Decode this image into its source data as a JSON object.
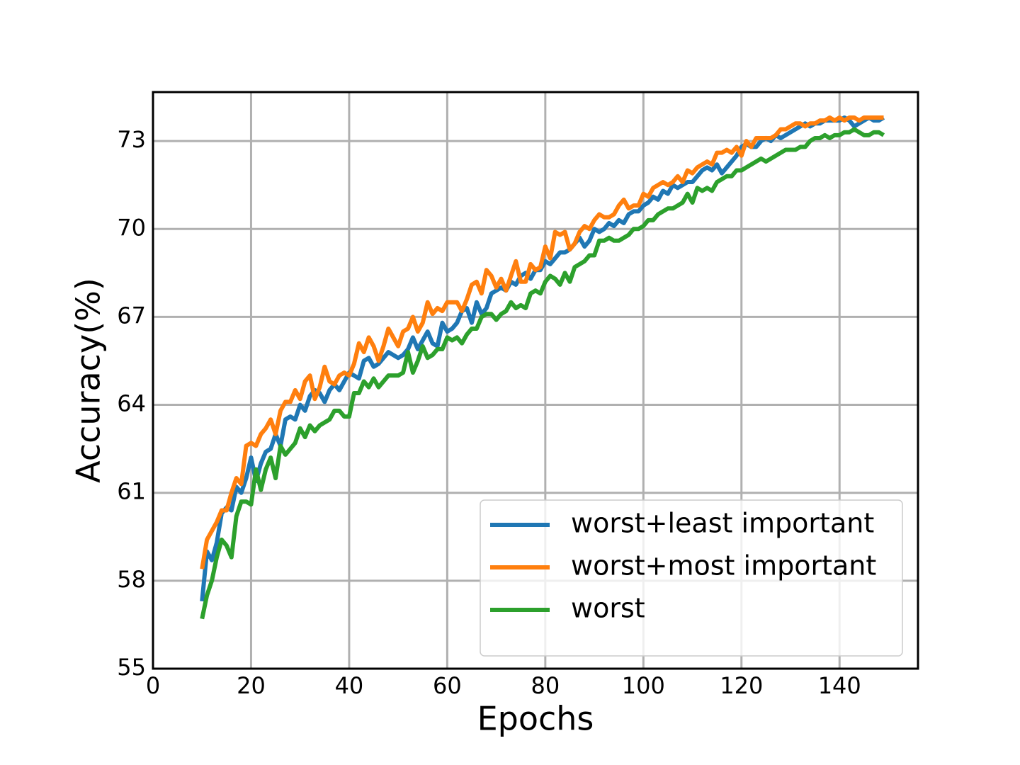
{
  "chart_data": {
    "type": "line",
    "xlabel": "Epochs",
    "ylabel": "Accuracy(%)",
    "xlim": [
      0,
      156
    ],
    "ylim": [
      55,
      74.67
    ],
    "xticks": [
      0,
      20,
      40,
      60,
      80,
      100,
      120,
      140
    ],
    "yticks": [
      55,
      58,
      61,
      64,
      67,
      70,
      73
    ],
    "grid": true,
    "legend": "lower right",
    "x": [
      10,
      11,
      12,
      13,
      14,
      15,
      16,
      17,
      18,
      19,
      20,
      21,
      22,
      23,
      24,
      25,
      26,
      27,
      28,
      29,
      30,
      31,
      32,
      33,
      34,
      35,
      36,
      37,
      38,
      39,
      40,
      41,
      42,
      43,
      44,
      45,
      46,
      47,
      48,
      49,
      50,
      51,
      52,
      53,
      54,
      55,
      56,
      57,
      58,
      59,
      60,
      61,
      62,
      63,
      64,
      65,
      66,
      67,
      68,
      69,
      70,
      71,
      72,
      73,
      74,
      75,
      76,
      77,
      78,
      79,
      80,
      81,
      82,
      83,
      84,
      85,
      86,
      87,
      88,
      89,
      90,
      91,
      92,
      93,
      94,
      95,
      96,
      97,
      98,
      99,
      100,
      101,
      102,
      103,
      104,
      105,
      106,
      107,
      108,
      109,
      110,
      111,
      112,
      113,
      114,
      115,
      116,
      117,
      118,
      119,
      120,
      121,
      122,
      123,
      124,
      125,
      126,
      127,
      128,
      129,
      130,
      131,
      132,
      133,
      134,
      135,
      136,
      137,
      138,
      139,
      140,
      141,
      142,
      143,
      144,
      145,
      146,
      147,
      148,
      149
    ],
    "series": [
      {
        "name": "worst+least important",
        "color": "#1f77b4",
        "values": [
          57.3,
          59.0,
          58.7,
          59.3,
          60.3,
          60.5,
          60.4,
          61.2,
          61.0,
          61.5,
          62.2,
          61.4,
          62.0,
          62.4,
          62.5,
          63.0,
          62.6,
          63.5,
          63.6,
          63.5,
          64.0,
          63.8,
          64.3,
          64.5,
          64.4,
          64.1,
          64.5,
          64.7,
          64.5,
          64.8,
          65.1,
          65.0,
          64.9,
          65.5,
          65.6,
          65.3,
          65.4,
          65.6,
          65.8,
          65.7,
          65.6,
          65.7,
          65.9,
          66.3,
          65.9,
          66.2,
          66.5,
          66.1,
          66.0,
          66.8,
          66.5,
          66.6,
          66.8,
          67.2,
          67.3,
          66.8,
          67.5,
          67.1,
          67.3,
          67.8,
          67.9,
          68.0,
          67.9,
          68.2,
          68.1,
          68.4,
          68.5,
          68.3,
          68.6,
          68.6,
          68.9,
          68.8,
          69.0,
          69.2,
          69.2,
          69.3,
          69.5,
          69.7,
          69.4,
          69.6,
          70.0,
          69.9,
          70.0,
          70.2,
          70.1,
          70.3,
          70.2,
          70.5,
          70.6,
          70.6,
          70.8,
          70.9,
          71.1,
          71.0,
          71.3,
          71.2,
          71.5,
          71.4,
          71.5,
          71.6,
          71.6,
          71.8,
          72.0,
          72.1,
          72.0,
          72.2,
          71.9,
          72.1,
          72.3,
          72.5,
          72.8,
          72.9,
          72.8,
          72.8,
          73.0,
          73.1,
          73.0,
          73.2,
          73.1,
          73.2,
          73.3,
          73.4,
          73.5,
          73.6,
          73.5,
          73.6,
          73.6,
          73.7,
          73.7,
          73.7,
          73.7,
          73.8,
          73.7,
          73.5,
          73.6,
          73.7,
          73.8,
          73.7,
          73.7,
          73.8
        ]
      },
      {
        "name": "worst+most important",
        "color": "#ff7f0e",
        "values": [
          58.4,
          59.4,
          59.7,
          60.0,
          60.4,
          60.4,
          61.0,
          61.5,
          61.3,
          62.6,
          62.7,
          62.6,
          63.0,
          63.2,
          63.5,
          63.0,
          63.8,
          64.1,
          64.1,
          64.5,
          64.2,
          64.8,
          65.0,
          64.2,
          64.6,
          65.3,
          64.8,
          64.7,
          65.0,
          65.1,
          65.0,
          65.4,
          66.1,
          65.8,
          66.3,
          66.0,
          65.5,
          66.0,
          66.6,
          66.3,
          66.0,
          66.5,
          66.6,
          67.0,
          66.5,
          66.8,
          67.5,
          67.1,
          67.3,
          67.2,
          67.5,
          67.5,
          67.5,
          67.2,
          67.6,
          68.1,
          68.2,
          67.8,
          68.6,
          68.4,
          68.0,
          68.3,
          67.9,
          68.4,
          68.9,
          68.2,
          68.2,
          68.8,
          68.6,
          68.7,
          69.4,
          69.0,
          69.9,
          69.8,
          69.9,
          69.3,
          69.5,
          69.9,
          70.1,
          70.0,
          70.3,
          70.5,
          70.4,
          70.4,
          70.5,
          70.8,
          71.0,
          70.7,
          70.8,
          70.8,
          71.2,
          71.1,
          71.4,
          71.5,
          71.6,
          71.5,
          71.6,
          71.8,
          71.6,
          72.0,
          71.9,
          72.1,
          72.2,
          72.3,
          72.2,
          72.6,
          72.6,
          72.7,
          72.6,
          72.8,
          72.5,
          73.0,
          72.8,
          73.1,
          73.1,
          73.1,
          73.1,
          73.2,
          73.4,
          73.4,
          73.5,
          73.6,
          73.6,
          73.5,
          73.6,
          73.6,
          73.7,
          73.7,
          73.8,
          73.7,
          73.8,
          73.7,
          73.8,
          73.8,
          73.7,
          73.8,
          73.8,
          73.8,
          73.8,
          73.8
        ]
      },
      {
        "name": "worst",
        "color": "#2ca02c",
        "values": [
          56.7,
          57.5,
          58.0,
          58.8,
          59.4,
          59.2,
          58.8,
          60.2,
          60.7,
          60.7,
          60.6,
          61.8,
          61.1,
          61.8,
          62.2,
          61.5,
          62.6,
          62.3,
          62.5,
          62.7,
          63.2,
          62.9,
          63.3,
          63.1,
          63.3,
          63.4,
          63.5,
          63.8,
          63.8,
          63.6,
          63.6,
          64.4,
          64.4,
          64.8,
          64.6,
          64.9,
          64.6,
          64.8,
          65.0,
          65.0,
          65.0,
          65.1,
          65.8,
          65.1,
          65.5,
          66.0,
          65.6,
          65.7,
          65.9,
          65.9,
          66.3,
          66.2,
          66.3,
          66.1,
          66.4,
          66.6,
          66.6,
          67.0,
          67.1,
          67.1,
          66.9,
          67.1,
          67.2,
          67.5,
          67.3,
          67.4,
          67.3,
          67.8,
          67.9,
          67.8,
          68.2,
          68.4,
          68.3,
          68.1,
          68.5,
          68.2,
          68.7,
          68.8,
          68.9,
          69.1,
          69.1,
          69.6,
          69.6,
          69.7,
          69.6,
          69.6,
          69.7,
          69.8,
          70.0,
          70.0,
          70.1,
          70.3,
          70.3,
          70.5,
          70.6,
          70.7,
          70.7,
          70.8,
          70.9,
          71.2,
          70.9,
          71.4,
          71.3,
          71.4,
          71.3,
          71.6,
          71.7,
          71.8,
          71.8,
          72.0,
          72.0,
          72.1,
          72.2,
          72.3,
          72.4,
          72.3,
          72.4,
          72.5,
          72.6,
          72.7,
          72.7,
          72.7,
          72.8,
          72.8,
          73.0,
          73.1,
          73.1,
          73.2,
          73.1,
          73.2,
          73.2,
          73.3,
          73.3,
          73.4,
          73.3,
          73.2,
          73.2,
          73.3,
          73.3,
          73.2
        ]
      }
    ]
  }
}
